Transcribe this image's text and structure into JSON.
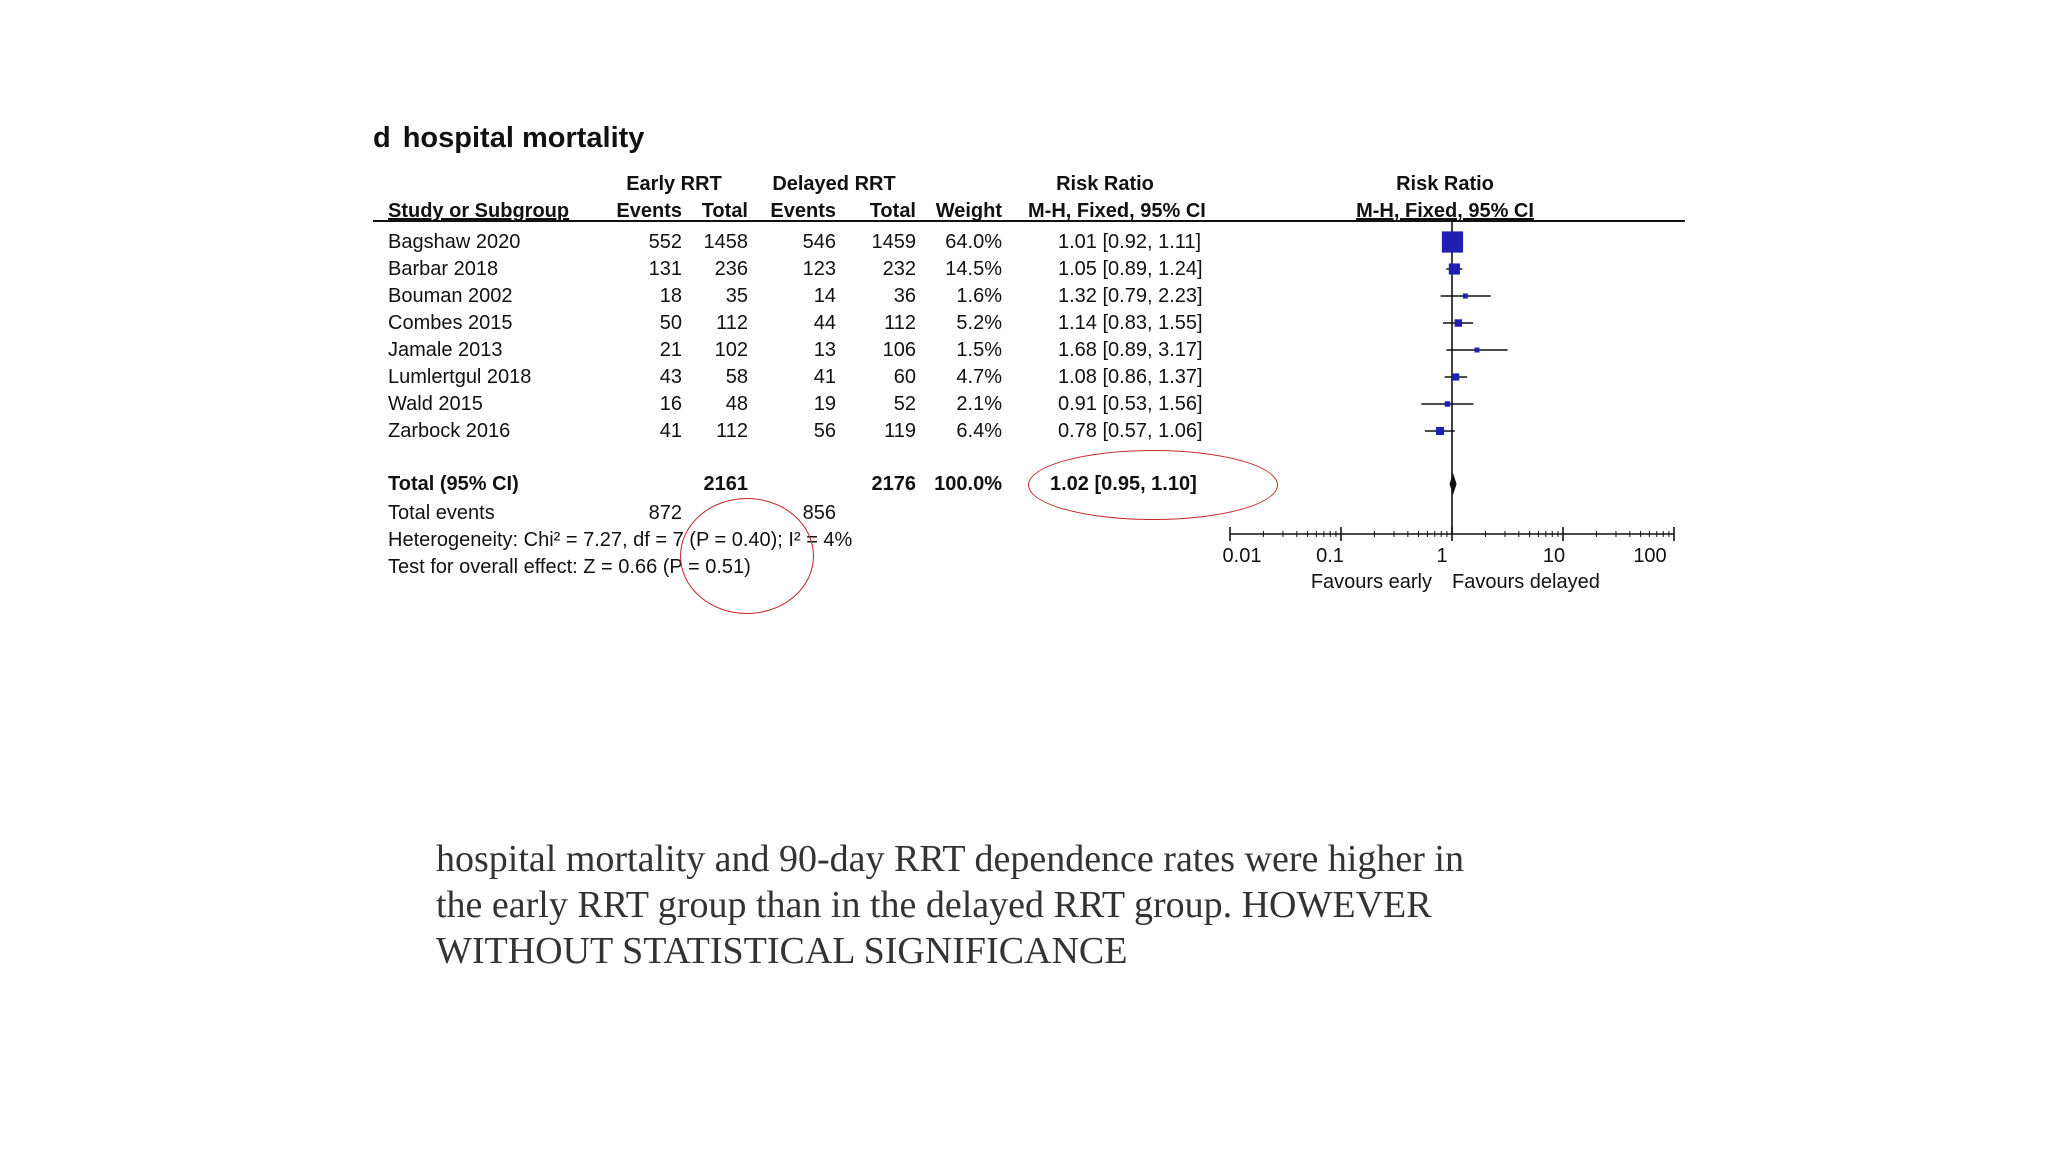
{
  "panel": {
    "letter": "d",
    "title": "hospital mortality"
  },
  "headers": {
    "group1": "Early RRT",
    "group2": "Delayed RRT",
    "rr_col": "Risk Ratio",
    "rr_plot": "Risk Ratio",
    "study": "Study or Subgroup",
    "events1": "Events",
    "total1": "Total",
    "events2": "Events",
    "total2": "Total",
    "weight": "Weight",
    "method_col": "M-H, Fixed, 95% CI",
    "method_plot": "M-H, Fixed, 95% CI"
  },
  "studies": [
    {
      "name": "Bagshaw 2020",
      "e1": "552",
      "t1": "1458",
      "e2": "546",
      "t2": "1459",
      "w": "64.0%",
      "ci": "1.01 [0.92, 1.11]"
    },
    {
      "name": "Barbar 2018",
      "e1": "131",
      "t1": "236",
      "e2": "123",
      "t2": "232",
      "w": "14.5%",
      "ci": "1.05 [0.89, 1.24]"
    },
    {
      "name": "Bouman 2002",
      "e1": "18",
      "t1": "35",
      "e2": "14",
      "t2": "36",
      "w": "1.6%",
      "ci": "1.32 [0.79, 2.23]"
    },
    {
      "name": "Combes 2015",
      "e1": "50",
      "t1": "112",
      "e2": "44",
      "t2": "112",
      "w": "5.2%",
      "ci": "1.14 [0.83, 1.55]"
    },
    {
      "name": "Jamale 2013",
      "e1": "21",
      "t1": "102",
      "e2": "13",
      "t2": "106",
      "w": "1.5%",
      "ci": "1.68 [0.89, 3.17]"
    },
    {
      "name": "Lumlertgul 2018",
      "e1": "43",
      "t1": "58",
      "e2": "41",
      "t2": "60",
      "w": "4.7%",
      "ci": "1.08 [0.86, 1.37]"
    },
    {
      "name": "Wald 2015",
      "e1": "16",
      "t1": "48",
      "e2": "19",
      "t2": "52",
      "w": "2.1%",
      "ci": "0.91 [0.53, 1.56]"
    },
    {
      "name": "Zarbock 2016",
      "e1": "41",
      "t1": "112",
      "e2": "56",
      "t2": "119",
      "w": "6.4%",
      "ci": "0.78 [0.57, 1.06]"
    }
  ],
  "total": {
    "label": "Total (95% CI)",
    "t1": "2161",
    "t2": "2176",
    "w": "100.0%",
    "ci": "1.02 [0.95, 1.10]"
  },
  "total_events": {
    "label": "Total events",
    "e1": "872",
    "e2": "856"
  },
  "heterogeneity": "Heterogeneity: Chi² = 7.27, df = 7 (P = 0.40); I² = 4%",
  "overall_effect": "Test for overall effect: Z = 0.66 (P = 0.51)",
  "axis": {
    "ticks": [
      "0.01",
      "0.1",
      "1",
      "10",
      "100"
    ],
    "favours_left": "Favours early",
    "favours_right": "Favours delayed"
  },
  "caption": [
    "hospital mortality and 90-day RRT dependence rates were higher in",
    "the early RRT group than in the delayed RRT group. HOWEVER",
    "WITHOUT STATISTICAL SIGNIFICANCE"
  ],
  "colors": {
    "marker": "#1f1fb4",
    "annotation": "#c62828",
    "text": "#111111",
    "caption": "#333333"
  },
  "chart_data": {
    "type": "scatter",
    "subtype": "forest-plot",
    "scale": "log",
    "xlim": [
      0.01,
      100
    ],
    "reference_line": 1,
    "points": [
      {
        "study": "Bagshaw 2020",
        "rr": 1.01,
        "lo": 0.92,
        "hi": 1.11,
        "weight": 64.0
      },
      {
        "study": "Barbar 2018",
        "rr": 1.05,
        "lo": 0.89,
        "hi": 1.24,
        "weight": 14.5
      },
      {
        "study": "Bouman 2002",
        "rr": 1.32,
        "lo": 0.79,
        "hi": 2.23,
        "weight": 1.6
      },
      {
        "study": "Combes 2015",
        "rr": 1.14,
        "lo": 0.83,
        "hi": 1.55,
        "weight": 5.2
      },
      {
        "study": "Jamale 2013",
        "rr": 1.68,
        "lo": 0.89,
        "hi": 3.17,
        "weight": 1.5
      },
      {
        "study": "Lumlertgul 2018",
        "rr": 1.08,
        "lo": 0.86,
        "hi": 1.37,
        "weight": 4.7
      },
      {
        "study": "Wald 2015",
        "rr": 0.91,
        "lo": 0.53,
        "hi": 1.56,
        "weight": 2.1
      },
      {
        "study": "Zarbock 2016",
        "rr": 0.78,
        "lo": 0.57,
        "hi": 1.06,
        "weight": 6.4
      }
    ],
    "pooled": {
      "rr": 1.02,
      "lo": 0.95,
      "hi": 1.1
    }
  }
}
